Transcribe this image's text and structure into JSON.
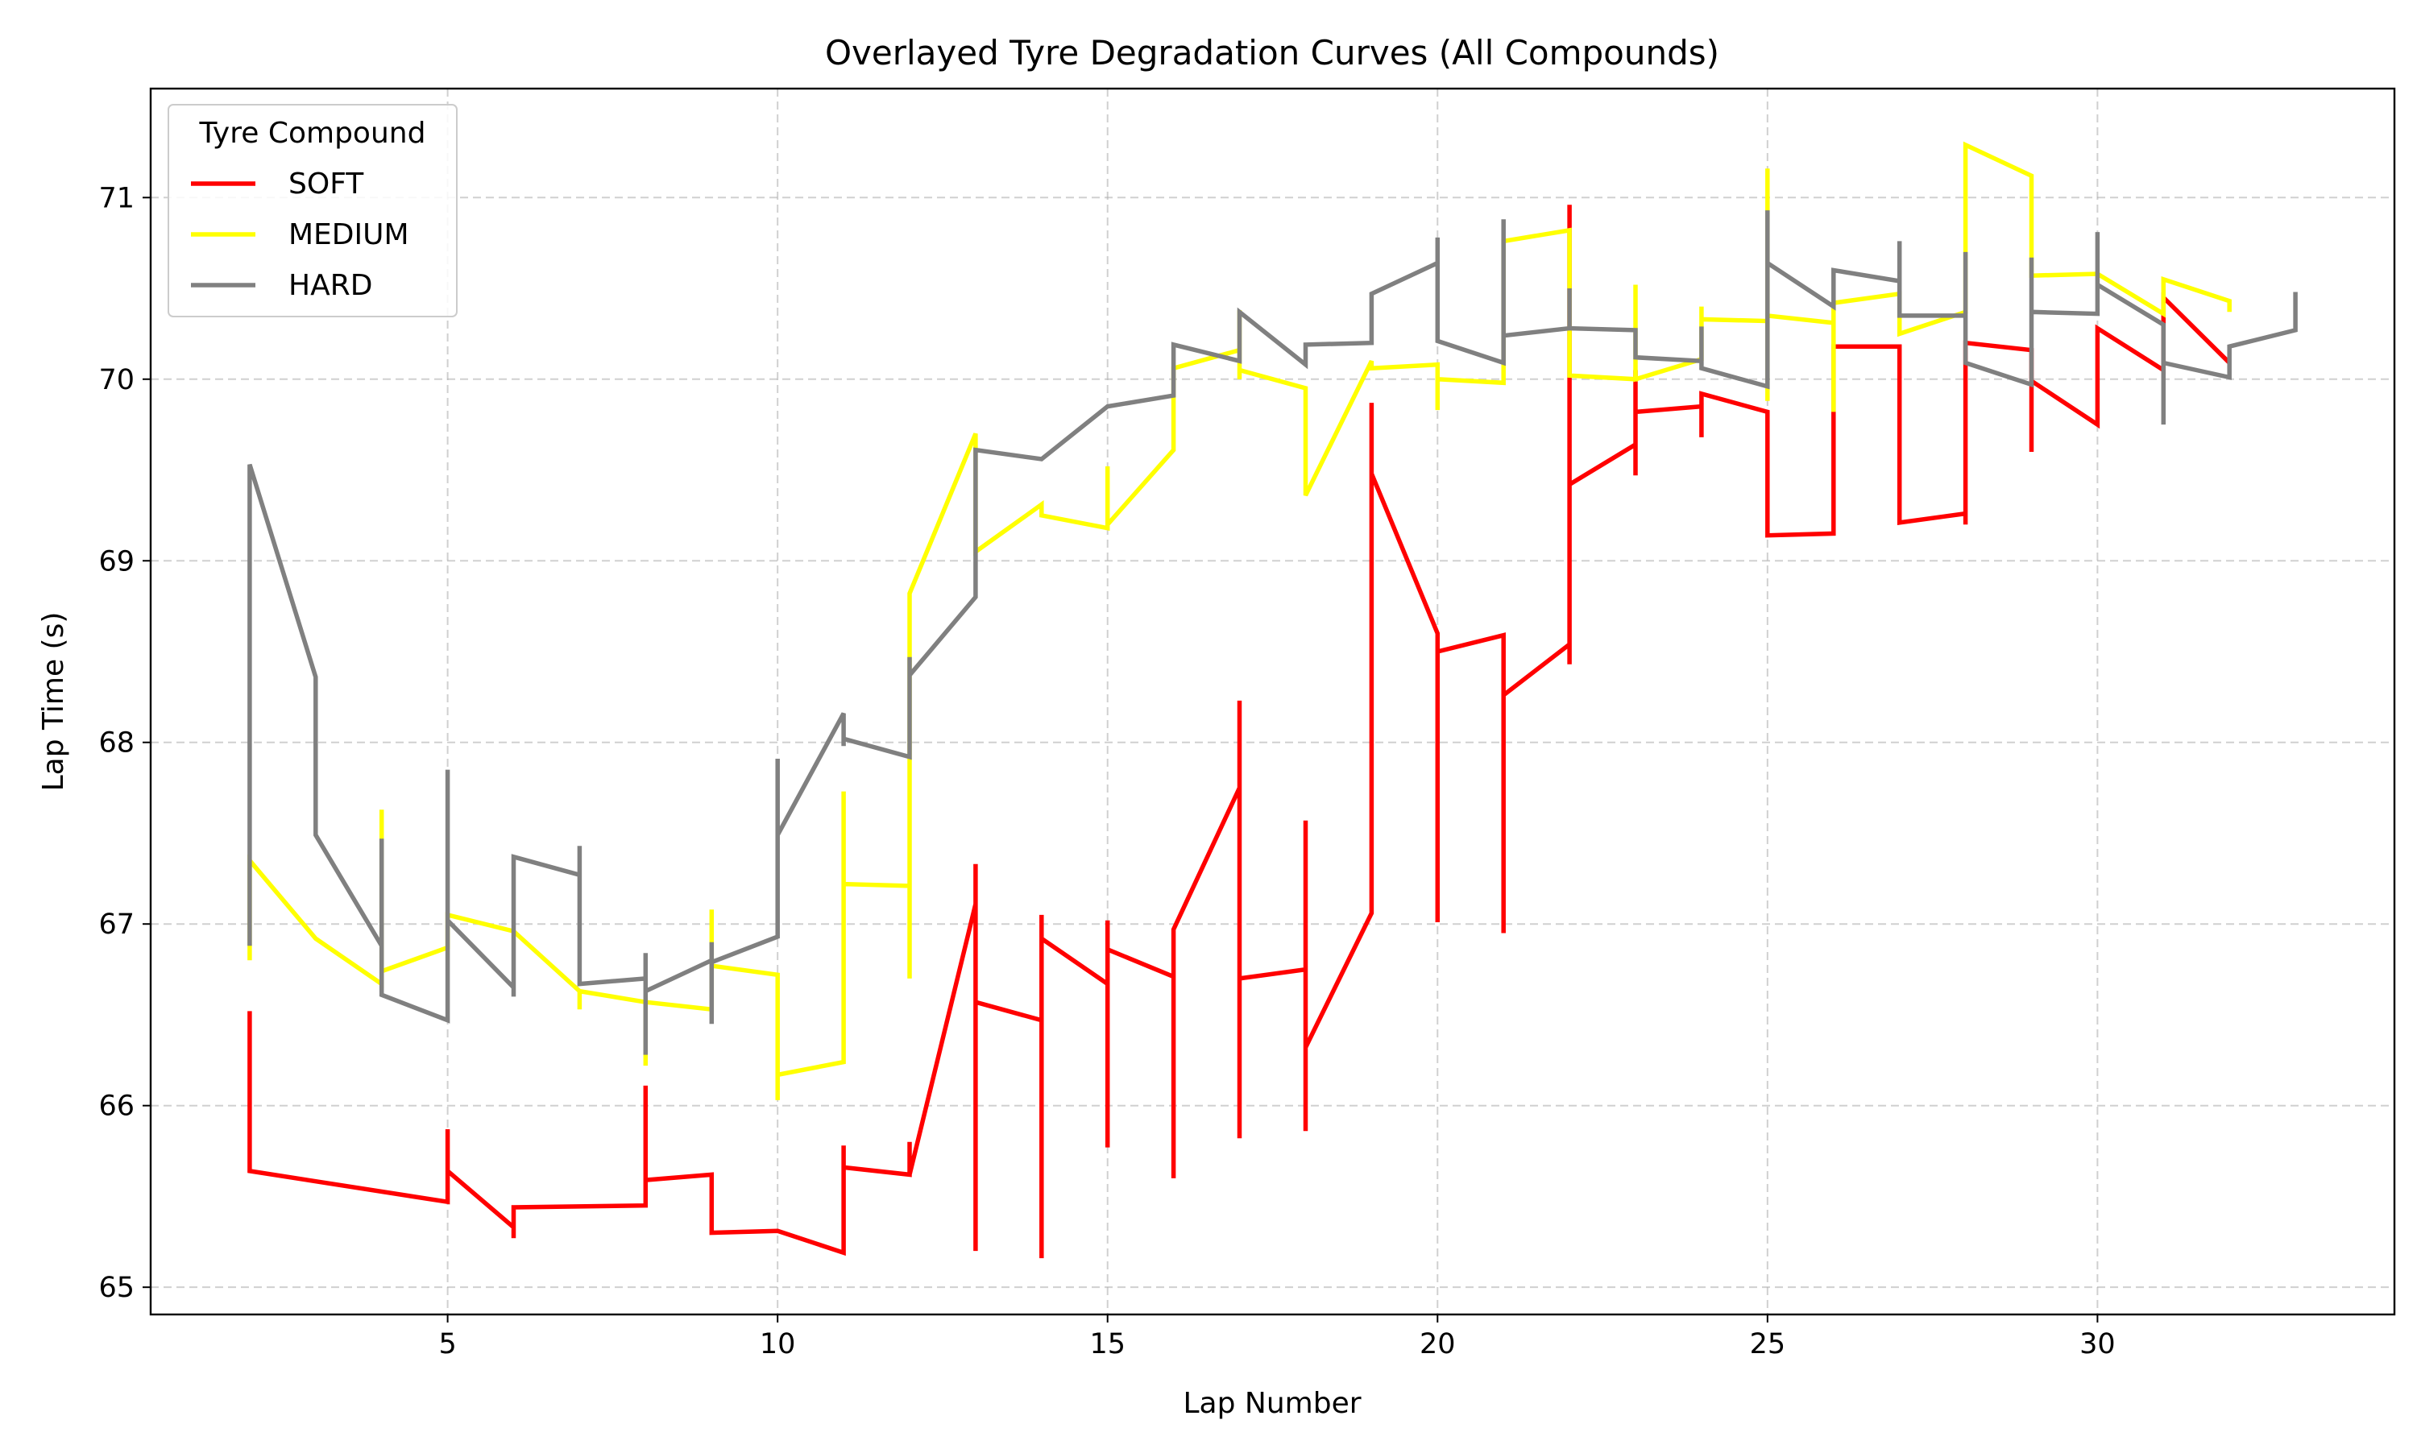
{
  "chart_data": {
    "type": "line",
    "title": "Overlayed Tyre Degradation Curves (All Compounds)",
    "xlabel": "Lap Number",
    "ylabel": "Lap Time (s)",
    "xlim": [
      0.5,
      34.5
    ],
    "ylim": [
      64.85,
      71.6
    ],
    "xticks": [
      5,
      10,
      15,
      20,
      25,
      30
    ],
    "yticks": [
      65,
      66,
      67,
      68,
      69,
      70,
      71
    ],
    "grid": true,
    "legend": {
      "title": "Tyre Compound",
      "placement": "top-left"
    },
    "series": [
      {
        "name": "SOFT",
        "color": "#ff0000",
        "points": [
          [
            2,
            66.52
          ],
          [
            2,
            65.64
          ],
          [
            5,
            65.47
          ],
          [
            5,
            65.87
          ],
          [
            5,
            65.64
          ],
          [
            6,
            65.33
          ],
          [
            6,
            65.27
          ],
          [
            6,
            65.44
          ],
          [
            8,
            65.45
          ],
          [
            8,
            66.11
          ],
          [
            8,
            65.59
          ],
          [
            9,
            65.62
          ],
          [
            9,
            65.3
          ],
          [
            10,
            65.31
          ],
          [
            11,
            65.19
          ],
          [
            11,
            65.78
          ],
          [
            11,
            65.66
          ],
          [
            12,
            65.62
          ],
          [
            12,
            65.8
          ],
          [
            12,
            65.62
          ],
          [
            13,
            67.11
          ],
          [
            13,
            65.2
          ],
          [
            13,
            67.33
          ],
          [
            13,
            66.57
          ],
          [
            14,
            66.47
          ],
          [
            14,
            65.16
          ],
          [
            14,
            67.05
          ],
          [
            14,
            66.92
          ],
          [
            15,
            66.67
          ],
          [
            15,
            65.77
          ],
          [
            15,
            67.02
          ],
          [
            15,
            66.86
          ],
          [
            16,
            66.71
          ],
          [
            16,
            65.6
          ],
          [
            16,
            66.97
          ],
          [
            17,
            67.75
          ],
          [
            17,
            65.82
          ],
          [
            17,
            68.23
          ],
          [
            17,
            66.7
          ],
          [
            18,
            66.75
          ],
          [
            18,
            65.86
          ],
          [
            18,
            67.57
          ],
          [
            18,
            66.32
          ],
          [
            19,
            67.06
          ],
          [
            19,
            69.87
          ],
          [
            19,
            69.48
          ],
          [
            20,
            68.6
          ],
          [
            20,
            67.01
          ],
          [
            20,
            68.5
          ],
          [
            21,
            68.59
          ],
          [
            21,
            66.95
          ],
          [
            21,
            68.26
          ],
          [
            22,
            68.54
          ],
          [
            22,
            68.43
          ],
          [
            22,
            70.96
          ],
          [
            22,
            69.42
          ],
          [
            23,
            69.64
          ],
          [
            23,
            69.47
          ],
          [
            23,
            70.05
          ],
          [
            23,
            69.82
          ],
          [
            24,
            69.85
          ],
          [
            24,
            69.68
          ],
          [
            24,
            69.92
          ],
          [
            25,
            69.82
          ],
          [
            25,
            69.14
          ],
          [
            26,
            69.15
          ],
          [
            26,
            69.82
          ],
          [
            26,
            70.18
          ],
          [
            27,
            70.18
          ],
          [
            27,
            69.21
          ],
          [
            28,
            69.26
          ],
          [
            28,
            69.2
          ],
          [
            28,
            70.2
          ],
          [
            29,
            70.16
          ],
          [
            29,
            69.6
          ],
          [
            29,
            69.99
          ],
          [
            30,
            69.75
          ],
          [
            30,
            70.1
          ],
          [
            30,
            70.28
          ],
          [
            31,
            70.05
          ],
          [
            31,
            70.45
          ],
          [
            32,
            70.09
          ]
        ]
      },
      {
        "name": "MEDIUM",
        "color": "#ffff00",
        "points": [
          [
            2,
            66.8
          ],
          [
            2,
            67.35
          ],
          [
            3,
            66.92
          ],
          [
            4,
            66.67
          ],
          [
            4,
            67.63
          ],
          [
            4,
            66.74
          ],
          [
            5,
            66.87
          ],
          [
            5,
            67.05
          ],
          [
            6,
            66.96
          ],
          [
            7,
            66.63
          ],
          [
            7,
            66.53
          ],
          [
            7,
            66.63
          ],
          [
            8,
            66.57
          ],
          [
            8,
            66.22
          ],
          [
            8,
            66.57
          ],
          [
            9,
            66.53
          ],
          [
            9,
            67.08
          ],
          [
            9,
            66.77
          ],
          [
            10,
            66.72
          ],
          [
            10,
            66.03
          ],
          [
            10,
            66.17
          ],
          [
            11,
            66.24
          ],
          [
            11,
            67.73
          ],
          [
            11,
            67.22
          ],
          [
            12,
            67.21
          ],
          [
            12,
            66.7
          ],
          [
            12,
            68.82
          ],
          [
            13,
            69.7
          ],
          [
            13,
            69.05
          ],
          [
            14,
            69.31
          ],
          [
            14,
            69.25
          ],
          [
            15,
            69.18
          ],
          [
            15,
            69.52
          ],
          [
            15,
            69.2
          ],
          [
            16,
            69.61
          ],
          [
            16,
            70.06
          ],
          [
            17,
            70.16
          ],
          [
            17,
            70.38
          ],
          [
            17,
            70.0
          ],
          [
            17,
            70.05
          ],
          [
            18,
            69.95
          ],
          [
            18,
            69.36
          ],
          [
            19,
            70.1
          ],
          [
            19,
            70.06
          ],
          [
            20,
            70.08
          ],
          [
            20,
            69.83
          ],
          [
            20,
            70.0
          ],
          [
            21,
            69.98
          ],
          [
            21,
            70.76
          ],
          [
            22,
            70.82
          ],
          [
            22,
            70.02
          ],
          [
            23,
            70.0
          ],
          [
            23,
            70.52
          ],
          [
            23,
            70.0
          ],
          [
            24,
            70.11
          ],
          [
            24,
            70.4
          ],
          [
            24,
            70.33
          ],
          [
            25,
            70.32
          ],
          [
            25,
            71.16
          ],
          [
            25,
            69.88
          ],
          [
            25,
            70.35
          ],
          [
            26,
            70.31
          ],
          [
            26,
            69.82
          ],
          [
            26,
            70.42
          ],
          [
            27,
            70.47
          ],
          [
            27,
            70.25
          ],
          [
            28,
            70.37
          ],
          [
            28,
            71.29
          ],
          [
            29,
            71.12
          ],
          [
            29,
            70.57
          ],
          [
            30,
            70.58
          ],
          [
            31,
            70.36
          ],
          [
            31,
            70.55
          ],
          [
            32,
            70.43
          ],
          [
            32,
            70.37
          ]
        ]
      },
      {
        "name": "HARD",
        "color": "#808080",
        "points": [
          [
            2,
            68.3
          ],
          [
            2,
            66.88
          ],
          [
            2,
            69.53
          ],
          [
            3,
            68.36
          ],
          [
            3,
            67.49
          ],
          [
            4,
            66.88
          ],
          [
            4,
            67.47
          ],
          [
            4,
            66.61
          ],
          [
            5,
            66.47
          ],
          [
            5,
            67.85
          ],
          [
            5,
            67.02
          ],
          [
            6,
            66.65
          ],
          [
            6,
            66.6
          ],
          [
            6,
            67.37
          ],
          [
            7,
            67.27
          ],
          [
            7,
            67.43
          ],
          [
            7,
            66.67
          ],
          [
            8,
            66.7
          ],
          [
            8,
            66.28
          ],
          [
            8,
            66.84
          ],
          [
            8,
            66.63
          ],
          [
            9,
            66.8
          ],
          [
            9,
            66.45
          ],
          [
            9,
            66.9
          ],
          [
            9,
            66.79
          ],
          [
            10,
            66.93
          ],
          [
            10,
            67.91
          ],
          [
            10,
            67.49
          ],
          [
            11,
            68.16
          ],
          [
            11,
            67.98
          ],
          [
            11,
            68.02
          ],
          [
            12,
            67.92
          ],
          [
            12,
            68.47
          ],
          [
            12,
            68.37
          ],
          [
            13,
            68.8
          ],
          [
            13,
            69.61
          ],
          [
            14,
            69.56
          ],
          [
            15,
            69.85
          ],
          [
            16,
            69.91
          ],
          [
            16,
            70.19
          ],
          [
            17,
            70.1
          ],
          [
            17,
            70.37
          ],
          [
            18,
            70.08
          ],
          [
            18,
            70.19
          ],
          [
            19,
            70.2
          ],
          [
            19,
            70.47
          ],
          [
            20,
            70.64
          ],
          [
            20,
            70.78
          ],
          [
            20,
            70.21
          ],
          [
            21,
            70.09
          ],
          [
            21,
            70.88
          ],
          [
            21,
            70.24
          ],
          [
            22,
            70.28
          ],
          [
            22,
            70.5
          ],
          [
            22,
            70.28
          ],
          [
            23,
            70.27
          ],
          [
            23,
            70.12
          ],
          [
            24,
            70.1
          ],
          [
            24,
            70.29
          ],
          [
            24,
            70.06
          ],
          [
            25,
            69.96
          ],
          [
            25,
            70.93
          ],
          [
            25,
            70.64
          ],
          [
            26,
            70.4
          ],
          [
            26,
            70.6
          ],
          [
            27,
            70.54
          ],
          [
            27,
            70.76
          ],
          [
            27,
            70.35
          ],
          [
            28,
            70.35
          ],
          [
            28,
            70.7
          ],
          [
            28,
            70.09
          ],
          [
            29,
            69.97
          ],
          [
            29,
            70.67
          ],
          [
            29,
            70.37
          ],
          [
            30,
            70.36
          ],
          [
            30,
            70.81
          ],
          [
            30,
            70.52
          ],
          [
            31,
            70.3
          ],
          [
            31,
            69.75
          ],
          [
            31,
            70.09
          ],
          [
            32,
            70.01
          ],
          [
            32,
            70.18
          ],
          [
            33,
            70.27
          ],
          [
            33,
            70.48
          ]
        ]
      }
    ]
  }
}
